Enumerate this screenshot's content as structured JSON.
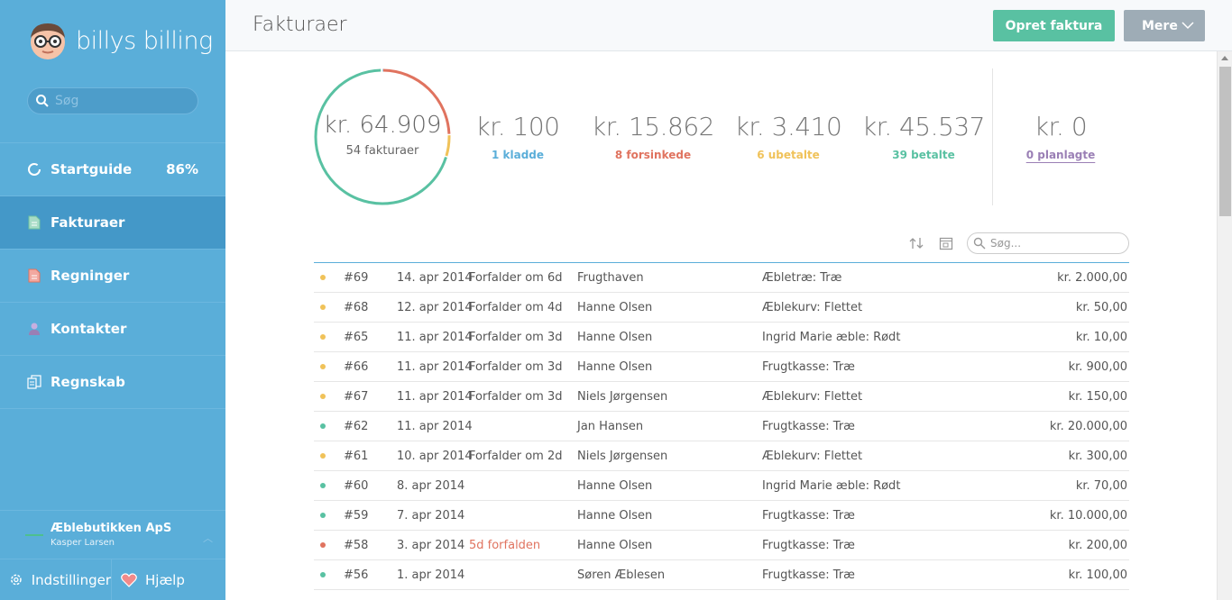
{
  "brand": {
    "name": "billys billing",
    "logo_icon": "nerd-face-avatar-icon"
  },
  "sidebar": {
    "search": {
      "placeholder": "Søg"
    },
    "items": [
      {
        "label": "Startguide",
        "icon": "progress-ring-icon",
        "badge": "86%"
      },
      {
        "label": "Fakturaer",
        "icon": "document-icon",
        "active": true
      },
      {
        "label": "Regninger",
        "icon": "bill-icon"
      },
      {
        "label": "Kontakter",
        "icon": "person-icon"
      },
      {
        "label": "Regnskab",
        "icon": "ledger-icon"
      }
    ],
    "company": {
      "name": "Æblebutikken ApS",
      "user": "Kasper Larsen"
    },
    "bottom": {
      "settings": "Indstillinger",
      "help": "Hjælp"
    }
  },
  "header": {
    "title": "Fakturaer",
    "create_label": "Opret faktura",
    "more_label": "Mere"
  },
  "summary": {
    "total_amount": "kr. 64.909",
    "total_count": "54 fakturaer",
    "stats": [
      {
        "amount": "kr. 100",
        "label": "1 kladde",
        "color": "#5aaed9"
      },
      {
        "amount": "kr. 15.862",
        "label": "8 forsinkede",
        "color": "#e0735f"
      },
      {
        "amount": "kr. 3.410",
        "label": "6 ubetalte",
        "color": "#f0c259"
      },
      {
        "amount": "kr. 45.537",
        "label": "39 betalte",
        "color": "#59c1a2"
      },
      {
        "amount": "kr. 0",
        "label": "0 planlagte",
        "color": "#9a7fb5"
      }
    ],
    "donut_fractions": {
      "betalte": 0.7,
      "ubetalte": 0.053,
      "forsinkede": 0.244,
      "kladde": 0.002
    }
  },
  "table": {
    "search_placeholder": "Søg...",
    "rows": [
      {
        "status_color": "#f0c259",
        "num": "#69",
        "date": "14. apr 2014",
        "status": "Forfalder om 6d",
        "overdue": false,
        "customer": "Frugthaven",
        "desc": "Æbletræ: Træ",
        "amount": "kr. 2.000,00"
      },
      {
        "status_color": "#f0c259",
        "num": "#68",
        "date": "12. apr 2014",
        "status": "Forfalder om 4d",
        "overdue": false,
        "customer": "Hanne Olsen",
        "desc": "Æblekurv: Flettet",
        "amount": "kr. 50,00"
      },
      {
        "status_color": "#f0c259",
        "num": "#65",
        "date": "11. apr 2014",
        "status": "Forfalder om 3d",
        "overdue": false,
        "customer": "Hanne Olsen",
        "desc": "Ingrid Marie æble: Rødt",
        "amount": "kr. 10,00"
      },
      {
        "status_color": "#f0c259",
        "num": "#66",
        "date": "11. apr 2014",
        "status": "Forfalder om 3d",
        "overdue": false,
        "customer": "Hanne Olsen",
        "desc": "Frugtkasse: Træ",
        "amount": "kr. 900,00"
      },
      {
        "status_color": "#f0c259",
        "num": "#67",
        "date": "11. apr 2014",
        "status": "Forfalder om 3d",
        "overdue": false,
        "customer": "Niels Jørgensen",
        "desc": "Æblekurv: Flettet",
        "amount": "kr. 150,00"
      },
      {
        "status_color": "#59c1a2",
        "num": "#62",
        "date": "11. apr 2014",
        "status": "",
        "overdue": false,
        "customer": "Jan Hansen",
        "desc": "Frugtkasse: Træ",
        "amount": "kr. 20.000,00"
      },
      {
        "status_color": "#f0c259",
        "num": "#61",
        "date": "10. apr 2014",
        "status": "Forfalder om 2d",
        "overdue": false,
        "customer": "Niels Jørgensen",
        "desc": "Æblekurv: Flettet",
        "amount": "kr. 300,00"
      },
      {
        "status_color": "#59c1a2",
        "num": "#60",
        "date": "8. apr 2014",
        "status": "",
        "overdue": false,
        "customer": "Hanne Olsen",
        "desc": "Ingrid Marie æble: Rødt",
        "amount": "kr. 70,00"
      },
      {
        "status_color": "#59c1a2",
        "num": "#59",
        "date": "7. apr 2014",
        "status": "",
        "overdue": false,
        "customer": "Hanne Olsen",
        "desc": "Frugtkasse: Træ",
        "amount": "kr. 10.000,00"
      },
      {
        "status_color": "#e0735f",
        "num": "#58",
        "date": "3. apr 2014",
        "status": "5d forfalden",
        "overdue": true,
        "customer": "Hanne Olsen",
        "desc": "Frugtkasse: Træ",
        "amount": "kr. 200,00"
      },
      {
        "status_color": "#59c1a2",
        "num": "#56",
        "date": "1. apr 2014",
        "status": "",
        "overdue": false,
        "customer": "Søren Æblesen",
        "desc": "Frugtkasse: Træ",
        "amount": "kr. 100,00"
      }
    ]
  }
}
